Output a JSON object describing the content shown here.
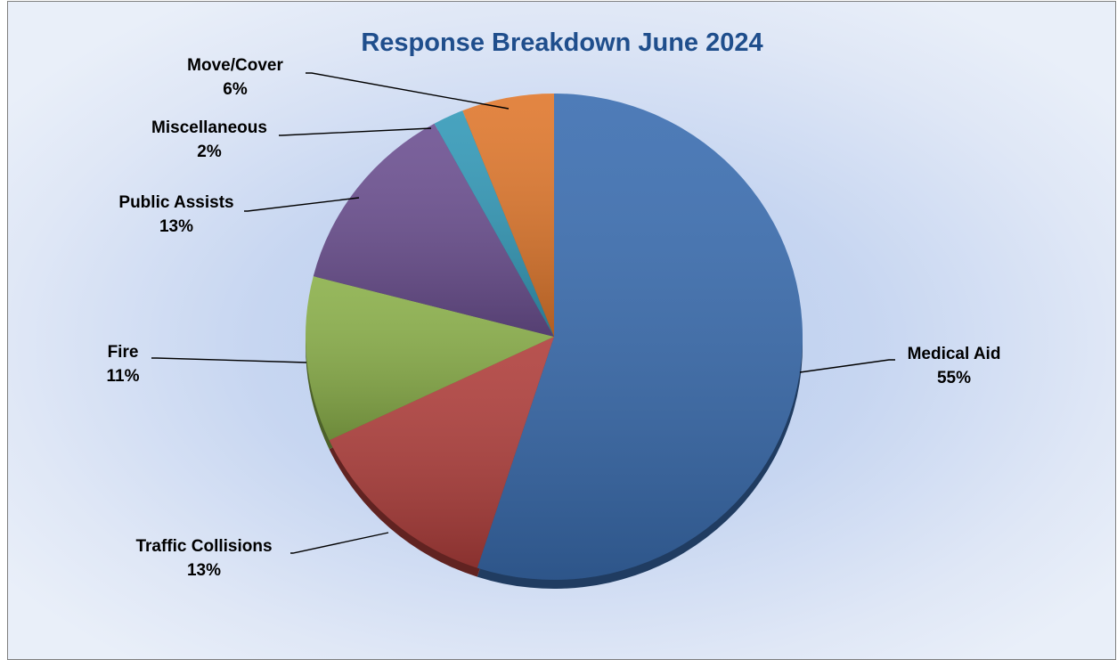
{
  "chart_data": {
    "type": "pie",
    "title": "Response Breakdown June 2024",
    "start": "top",
    "direction": "clockwise",
    "slices": [
      {
        "label": "Medical Aid",
        "percent_label": "55%",
        "value": 55,
        "color": "#3a6db0"
      },
      {
        "label": "Traffic Collisions",
        "percent_label": "13%",
        "value": 13,
        "color": "#b03f3c"
      },
      {
        "label": "Fire",
        "percent_label": "11%",
        "value": 11,
        "color": "#8bb04a"
      },
      {
        "label": "Public Assists",
        "percent_label": "13%",
        "value": 13,
        "color": "#6c5091"
      },
      {
        "label": "Miscellaneous",
        "percent_label": "2%",
        "value": 2,
        "color": "#3399b8"
      },
      {
        "label": "Move/Cover",
        "percent_label": "6%",
        "value": 6,
        "color": "#e0782d"
      }
    ]
  }
}
